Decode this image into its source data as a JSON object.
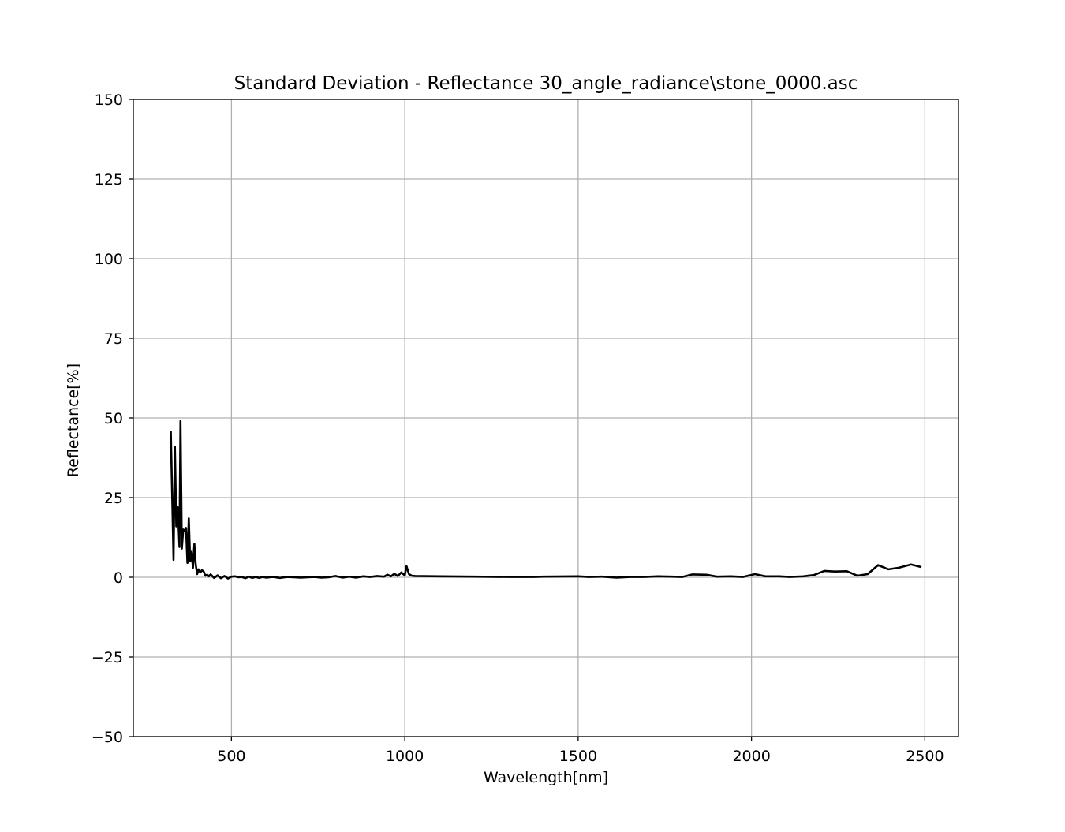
{
  "chart_data": {
    "type": "line",
    "title": "Standard Deviation - Reflectance 30_angle_radiance\\stone_0000.asc",
    "xlabel": "Wavelength[nm]",
    "ylabel": "Reflectance[%]",
    "xlim": [
      217,
      2597
    ],
    "ylim": [
      -50,
      150
    ],
    "xticks": [
      500,
      1000,
      1500,
      2000,
      2500
    ],
    "xtick_labels": [
      "500",
      "1000",
      "1500",
      "2000",
      "2500"
    ],
    "yticks": [
      -50,
      -25,
      0,
      25,
      50,
      75,
      100,
      125,
      150
    ],
    "ytick_labels": [
      "−50",
      "−25",
      "0",
      "25",
      "50",
      "75",
      "100",
      "125",
      "150"
    ],
    "grid": true,
    "line_color": "#000000",
    "grid_color": "#b0b0b0",
    "series": [
      {
        "x": [
          325,
          333,
          337,
          341,
          345,
          350,
          353,
          357,
          361,
          365,
          369,
          373,
          377,
          381,
          385,
          389,
          393,
          397,
          401,
          405,
          410,
          415,
          420,
          425,
          430,
          435,
          440,
          450,
          460,
          470,
          480,
          490,
          500,
          510,
          520,
          530,
          540,
          550,
          560,
          570,
          580,
          590,
          600,
          610,
          620,
          640,
          660,
          680,
          700,
          720,
          740,
          760,
          780,
          800,
          820,
          840,
          860,
          880,
          900,
          920,
          940,
          950,
          960,
          970,
          980,
          990,
          1000,
          1005,
          1012,
          1020,
          1030,
          1100,
          1200,
          1300,
          1370,
          1400,
          1500,
          1530,
          1570,
          1610,
          1650,
          1690,
          1730,
          1770,
          1800,
          1830,
          1870,
          1900,
          1940,
          1975,
          2010,
          2040,
          2080,
          2110,
          2150,
          2180,
          2210,
          2240,
          2275,
          2305,
          2335,
          2365,
          2395,
          2425,
          2460,
          2490
        ],
        "y": [
          46,
          5.5,
          41,
          16,
          22,
          9.5,
          49,
          9,
          15,
          14.5,
          15.5,
          4.5,
          18.5,
          5,
          8,
          3,
          10.5,
          4,
          1,
          2.5,
          1.5,
          2.2,
          1.8,
          0.5,
          0.8,
          0.3,
          0.9,
          -0.2,
          0.6,
          -0.3,
          0.4,
          -0.4,
          0.2,
          0.3,
          0,
          0.1,
          -0.3,
          0.2,
          -0.2,
          0.1,
          -0.2,
          0.1,
          -0.1,
          0,
          0.1,
          -0.2,
          0.1,
          0,
          -0.1,
          0,
          0.1,
          -0.1,
          0,
          0.4,
          -0.1,
          0.2,
          -0.1,
          0.3,
          0.1,
          0.4,
          0.2,
          0.8,
          0.3,
          1.1,
          0.4,
          1.5,
          0.6,
          3.5,
          1.0,
          0.5,
          0.4,
          0.3,
          0.2,
          0.1,
          0.1,
          0.2,
          0.3,
          0.1,
          0.2,
          -0.1,
          0.1,
          0.1,
          0.3,
          0.2,
          0.1,
          0.9,
          0.8,
          0.2,
          0.3,
          0.1,
          1.0,
          0.3,
          0.3,
          0.1,
          0.3,
          0.7,
          2.0,
          1.8,
          1.9,
          0.5,
          1.0,
          3.8,
          2.5,
          3.0,
          4.0,
          3.2
        ]
      }
    ]
  }
}
